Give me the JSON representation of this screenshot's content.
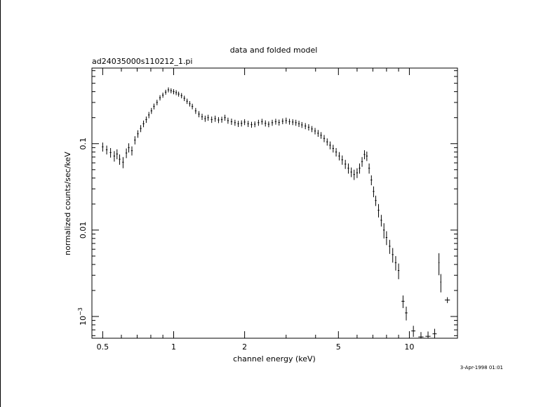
{
  "chart_data": {
    "type": "scatter",
    "title": "data and folded model",
    "subtitle": "ad24035000s110212_1.pi",
    "xlabel": "channel energy (keV)",
    "ylabel": "normalized counts/sec/keV",
    "x_scale": "log",
    "y_scale": "log",
    "xlim": [
      0.45,
      16.0
    ],
    "ylim": [
      0.00056,
      0.75
    ],
    "x_ticks": [
      {
        "value": 0.5,
        "label": "0.5"
      },
      {
        "value": 1,
        "label": "1"
      },
      {
        "value": 2,
        "label": "2"
      },
      {
        "value": 5,
        "label": "5"
      },
      {
        "value": 10,
        "label": "10"
      }
    ],
    "y_ticks": [
      {
        "value": 0.1,
        "label": "0.1"
      },
      {
        "value": 0.01,
        "label": "0.01"
      },
      {
        "value": 0.001,
        "label": "10",
        "exponent": "−3"
      }
    ],
    "timestamp": "3-Apr-1998 01:01",
    "series": [
      {
        "points": [
          [
            0.5,
            0.092,
            0.011,
            0.008
          ],
          [
            0.52,
            0.085,
            0.01,
            0.008
          ],
          [
            0.54,
            0.079,
            0.01,
            0.008
          ],
          [
            0.56,
            0.072,
            0.01,
            0.008
          ],
          [
            0.575,
            0.076,
            0.01,
            0.008
          ],
          [
            0.59,
            0.066,
            0.009,
            0.008
          ],
          [
            0.61,
            0.061,
            0.009,
            0.008
          ],
          [
            0.63,
            0.078,
            0.01,
            0.008
          ],
          [
            0.645,
            0.09,
            0.011,
            0.008
          ],
          [
            0.665,
            0.083,
            0.01,
            0.008
          ],
          [
            0.685,
            0.11,
            0.012,
            0.008
          ],
          [
            0.705,
            0.13,
            0.013,
            0.008
          ],
          [
            0.725,
            0.15,
            0.014,
            0.008
          ],
          [
            0.745,
            0.17,
            0.015,
            0.008
          ],
          [
            0.765,
            0.19,
            0.016,
            0.008
          ],
          [
            0.785,
            0.215,
            0.018,
            0.008
          ],
          [
            0.805,
            0.24,
            0.019,
            0.008
          ],
          [
            0.825,
            0.27,
            0.021,
            0.008
          ],
          [
            0.85,
            0.3,
            0.022,
            0.008
          ],
          [
            0.875,
            0.34,
            0.024,
            0.008
          ],
          [
            0.9,
            0.365,
            0.025,
            0.008
          ],
          [
            0.925,
            0.395,
            0.026,
            0.008
          ],
          [
            0.95,
            0.42,
            0.028,
            0.008
          ],
          [
            0.975,
            0.41,
            0.027,
            0.008
          ],
          [
            1.0,
            0.4,
            0.027,
            0.008
          ],
          [
            1.025,
            0.39,
            0.026,
            0.008
          ],
          [
            1.05,
            0.375,
            0.025,
            0.008
          ],
          [
            1.08,
            0.36,
            0.025,
            0.008
          ],
          [
            1.11,
            0.335,
            0.024,
            0.008
          ],
          [
            1.14,
            0.31,
            0.022,
            0.008
          ],
          [
            1.17,
            0.29,
            0.021,
            0.008
          ],
          [
            1.2,
            0.27,
            0.02,
            0.008
          ],
          [
            1.24,
            0.24,
            0.019,
            0.008
          ],
          [
            1.28,
            0.22,
            0.018,
            0.008
          ],
          [
            1.32,
            0.205,
            0.017,
            0.008
          ],
          [
            1.36,
            0.195,
            0.016,
            0.008
          ],
          [
            1.4,
            0.2,
            0.016,
            0.008
          ],
          [
            1.45,
            0.19,
            0.016,
            0.008
          ],
          [
            1.5,
            0.195,
            0.016,
            0.008
          ],
          [
            1.55,
            0.188,
            0.015,
            0.008
          ],
          [
            1.6,
            0.19,
            0.015,
            0.008
          ],
          [
            1.65,
            0.2,
            0.016,
            0.008
          ],
          [
            1.7,
            0.185,
            0.015,
            0.008
          ],
          [
            1.76,
            0.18,
            0.015,
            0.008
          ],
          [
            1.82,
            0.175,
            0.014,
            0.008
          ],
          [
            1.88,
            0.17,
            0.014,
            0.008
          ],
          [
            1.94,
            0.172,
            0.014,
            0.008
          ],
          [
            2.0,
            0.178,
            0.014,
            0.008
          ],
          [
            2.07,
            0.17,
            0.014,
            0.008
          ],
          [
            2.14,
            0.166,
            0.013,
            0.008
          ],
          [
            2.21,
            0.168,
            0.013,
            0.008
          ],
          [
            2.29,
            0.175,
            0.014,
            0.008
          ],
          [
            2.37,
            0.18,
            0.014,
            0.008
          ],
          [
            2.45,
            0.172,
            0.014,
            0.008
          ],
          [
            2.53,
            0.168,
            0.013,
            0.008
          ],
          [
            2.62,
            0.175,
            0.014,
            0.008
          ],
          [
            2.71,
            0.18,
            0.014,
            0.008
          ],
          [
            2.8,
            0.176,
            0.014,
            0.008
          ],
          [
            2.9,
            0.182,
            0.014,
            0.008
          ],
          [
            3.0,
            0.185,
            0.015,
            0.008
          ],
          [
            3.1,
            0.18,
            0.014,
            0.008
          ],
          [
            3.2,
            0.178,
            0.014,
            0.008
          ],
          [
            3.3,
            0.175,
            0.014,
            0.008
          ],
          [
            3.4,
            0.17,
            0.014,
            0.008
          ],
          [
            3.5,
            0.165,
            0.013,
            0.008
          ],
          [
            3.62,
            0.16,
            0.013,
            0.008
          ],
          [
            3.74,
            0.155,
            0.013,
            0.008
          ],
          [
            3.86,
            0.148,
            0.012,
            0.008
          ],
          [
            3.98,
            0.14,
            0.012,
            0.008
          ],
          [
            4.1,
            0.132,
            0.012,
            0.008
          ],
          [
            4.22,
            0.125,
            0.011,
            0.008
          ],
          [
            4.35,
            0.115,
            0.011,
            0.008
          ],
          [
            4.48,
            0.105,
            0.01,
            0.008
          ],
          [
            4.61,
            0.096,
            0.01,
            0.008
          ],
          [
            4.75,
            0.088,
            0.009,
            0.008
          ],
          [
            4.89,
            0.08,
            0.009,
            0.008
          ],
          [
            5.04,
            0.072,
            0.008,
            0.008
          ],
          [
            5.19,
            0.065,
            0.008,
            0.008
          ],
          [
            5.35,
            0.058,
            0.007,
            0.008
          ],
          [
            5.51,
            0.052,
            0.007,
            0.008
          ],
          [
            5.67,
            0.047,
            0.006,
            0.008
          ],
          [
            5.83,
            0.044,
            0.006,
            0.008
          ],
          [
            6.0,
            0.046,
            0.006,
            0.008
          ],
          [
            6.15,
            0.052,
            0.007,
            0.008
          ],
          [
            6.3,
            0.062,
            0.008,
            0.008
          ],
          [
            6.45,
            0.075,
            0.009,
            0.008
          ],
          [
            6.6,
            0.072,
            0.009,
            0.008
          ],
          [
            6.75,
            0.052,
            0.007,
            0.008
          ],
          [
            6.9,
            0.038,
            0.005,
            0.008
          ],
          [
            7.05,
            0.028,
            0.004,
            0.008
          ],
          [
            7.2,
            0.022,
            0.003,
            0.008
          ],
          [
            7.4,
            0.017,
            0.003,
            0.008
          ],
          [
            7.6,
            0.013,
            0.002,
            0.008
          ],
          [
            7.8,
            0.01,
            0.002,
            0.008
          ],
          [
            8.0,
            0.0082,
            0.0015,
            0.008
          ],
          [
            8.25,
            0.0065,
            0.0012,
            0.008
          ],
          [
            8.5,
            0.0052,
            0.001,
            0.008
          ],
          [
            8.75,
            0.0042,
            0.0008,
            0.008
          ],
          [
            9.0,
            0.0034,
            0.0007,
            0.008
          ],
          [
            9.4,
            0.0015,
            0.00025,
            0.015
          ],
          [
            9.7,
            0.0011,
            0.0002,
            0.012
          ],
          [
            10.4,
            0.00068,
            0.0001,
            0.02
          ],
          [
            11.2,
            0.00058,
            8e-05,
            0.025
          ],
          [
            12.0,
            0.00059,
            8e-05,
            0.025
          ],
          [
            12.8,
            0.00063,
            9e-05,
            0.02
          ],
          [
            13.35,
            0.0042,
            0.0012,
            0.005
          ],
          [
            13.6,
            0.0025,
            0.0006,
            0.005
          ],
          [
            14.5,
            0.00155,
            0.00012,
            0.025
          ]
        ]
      }
    ]
  }
}
